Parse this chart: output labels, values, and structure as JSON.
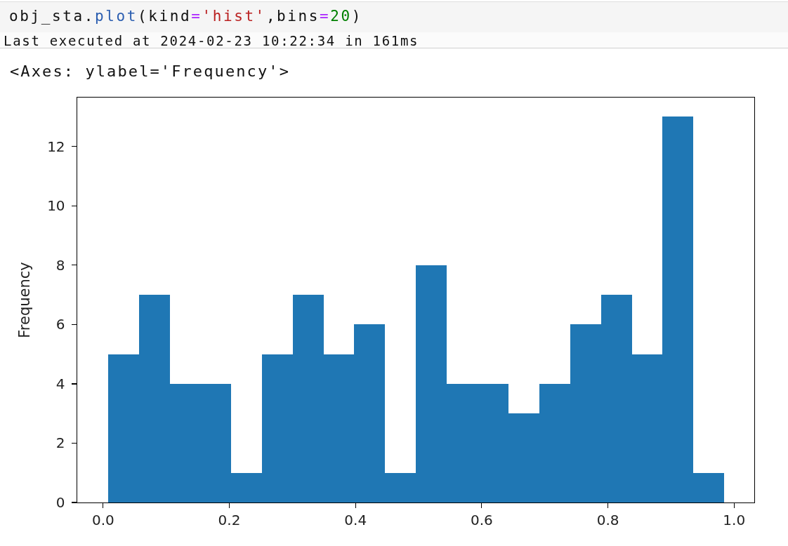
{
  "chart_data": {
    "type": "histogram",
    "annotations": [
      "obj_sta.plot(kind='hist',bins=20)",
      "Last executed at 2024-02-23 10:22:34 in 161ms",
      "<Axes: ylabel='Frequency'>"
    ],
    "ylabel": "Frequency",
    "bins": [
      0.008,
      0.057,
      0.106,
      0.154,
      0.203,
      0.252,
      0.301,
      0.35,
      0.398,
      0.447,
      0.496,
      0.545,
      0.594,
      0.642,
      0.691,
      0.74,
      0.789,
      0.838,
      0.886,
      0.935,
      0.984
    ],
    "values": [
      5,
      7,
      4,
      4,
      1,
      5,
      7,
      5,
      6,
      1,
      8,
      4,
      4,
      3,
      4,
      6,
      7,
      5,
      13,
      1
    ],
    "color": "#1f77b4",
    "xlim": [
      -0.041,
      1.032
    ],
    "xticks": [
      {
        "value": 0,
        "label": "0.0"
      },
      0.2,
      0.4,
      0.6,
      0.8,
      {
        "value": 1,
        "label": "1.0"
      }
    ],
    "ylim": [
      0,
      13.65
    ],
    "yticks": [
      0,
      2,
      4,
      6,
      8,
      10,
      12
    ]
  }
}
